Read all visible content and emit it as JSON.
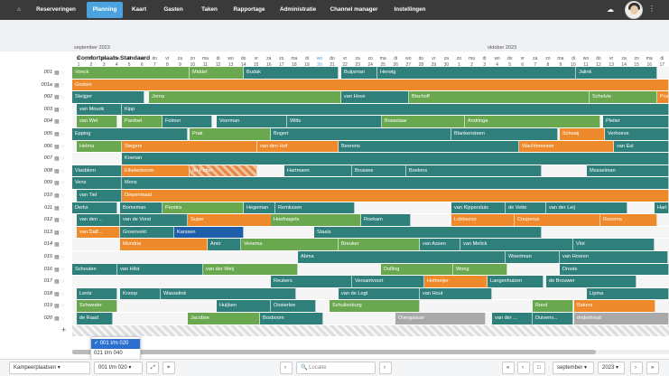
{
  "nav": {
    "home_icon": "home-icon",
    "items": [
      "Reserveringen",
      "Planning",
      "Kaart",
      "Gasten",
      "Taken",
      "Rapportage",
      "Administratie",
      "Channel manager",
      "Instellingen"
    ],
    "active": "Planning",
    "cloud_icon": "cloud-download-icon",
    "menu_icon": "kebab-menu-icon"
  },
  "months": {
    "m1": "september 2023",
    "m2": "oktober 2023"
  },
  "days": [
    [
      "vr",
      "1"
    ],
    [
      "za",
      "2"
    ],
    [
      "zo",
      "3"
    ],
    [
      "ma",
      "4"
    ],
    [
      "di",
      "5"
    ],
    [
      "wo",
      "6"
    ],
    [
      "do",
      "7"
    ],
    [
      "vr",
      "8"
    ],
    [
      "za",
      "9"
    ],
    [
      "zo",
      "10"
    ],
    [
      "ma",
      "11"
    ],
    [
      "di",
      "12"
    ],
    [
      "wo",
      "13"
    ],
    [
      "do",
      "14"
    ],
    [
      "vr",
      "15"
    ],
    [
      "za",
      "16"
    ],
    [
      "zo",
      "17"
    ],
    [
      "ma",
      "18"
    ],
    [
      "di",
      "19"
    ],
    [
      "wo",
      "20"
    ],
    [
      "do",
      "21"
    ],
    [
      "vr",
      "22"
    ],
    [
      "za",
      "23"
    ],
    [
      "zo",
      "24"
    ],
    [
      "ma",
      "25"
    ],
    [
      "di",
      "26"
    ],
    [
      "wo",
      "27"
    ],
    [
      "do",
      "28"
    ],
    [
      "vr",
      "29"
    ],
    [
      "za",
      "30"
    ],
    [
      "zo",
      "1"
    ],
    [
      "ma",
      "2"
    ],
    [
      "di",
      "3"
    ],
    [
      "wo",
      "4"
    ],
    [
      "do",
      "5"
    ],
    [
      "vr",
      "6"
    ],
    [
      "za",
      "7"
    ],
    [
      "zo",
      "8"
    ],
    [
      "ma",
      "9"
    ],
    [
      "di",
      "10"
    ],
    [
      "wo",
      "11"
    ],
    [
      "do",
      "12"
    ],
    [
      "vr",
      "13"
    ],
    [
      "za",
      "14"
    ],
    [
      "zo",
      "15"
    ],
    [
      "ma",
      "16"
    ],
    [
      "di",
      "17"
    ]
  ],
  "today_index": 19,
  "section_title": "Comfortplaats Standaard",
  "rows": [
    "001",
    "001a",
    "002",
    "003",
    "004",
    "005",
    "006",
    "007",
    "008",
    "009",
    "010",
    "011",
    "012",
    "013",
    "014",
    "015",
    "016",
    "017",
    "018",
    "019",
    "020"
  ],
  "bars": [
    [
      [
        "Vonck",
        "green",
        80,
        130
      ],
      [
        "Middel",
        "green",
        210,
        60
      ],
      [
        "Budak",
        "teal",
        270,
        105
      ],
      [
        "Buijsman",
        "teal",
        378,
        40
      ],
      [
        "Herwig",
        "teal",
        418,
        220
      ],
      [
        "Jalink",
        "teal",
        638,
        90
      ]
    ],
    [
      [
        "Gruben",
        "orange",
        80,
        661
      ]
    ],
    [
      [
        "Steijger",
        "teal",
        80,
        80
      ],
      [
        "Jorna",
        "green",
        165,
        213
      ],
      [
        "van Hove",
        "teal",
        378,
        75
      ],
      [
        "Bischoff",
        "green",
        453,
        200
      ],
      [
        "Schelvis",
        "green",
        653,
        75
      ],
      [
        "Pozz",
        "orange",
        728,
        13
      ]
    ],
    [
      [
        "van Mourik",
        "teal",
        85,
        50
      ],
      [
        "Kipp",
        "teal",
        135,
        606
      ]
    ],
    [
      [
        "van Wel",
        "green",
        85,
        45
      ],
      [
        "Pardoel",
        "green",
        135,
        45
      ],
      [
        "Folmer",
        "teal",
        180,
        55
      ],
      [
        "Voerman",
        "teal",
        240,
        78
      ],
      [
        "Wilts",
        "teal",
        318,
        105
      ],
      [
        "Bosselaar",
        "green",
        423,
        92
      ],
      [
        "Andringa",
        "green",
        515,
        150
      ],
      [
        "Pleiter",
        "teal",
        668,
        73
      ]
    ],
    [
      [
        "Epping",
        "teal",
        80,
        128
      ],
      [
        "Prak",
        "green",
        210,
        90
      ],
      [
        "Bogert",
        "teal",
        300,
        200
      ],
      [
        "Blankensteen",
        "teal",
        500,
        118
      ],
      [
        "Schaaij",
        "orange",
        620,
        50
      ],
      [
        "Verhoeve",
        "teal",
        670,
        71
      ]
    ],
    [
      [
        "Helma",
        "green",
        85,
        50
      ],
      [
        "Stegers",
        "orange",
        135,
        150
      ],
      [
        "van den Hof",
        "orange",
        285,
        90
      ],
      [
        "Beerens",
        "teal",
        375,
        200
      ],
      [
        "Wachtmeester",
        "orange",
        575,
        105
      ],
      [
        "van Est",
        "teal",
        680,
        61
      ]
    ],
    [
      [
        "Koenan",
        "teal",
        135,
        606
      ]
    ],
    [
      [
        "Viasblom",
        "teal",
        80,
        55
      ],
      [
        "Eikelenboom",
        "orange",
        135,
        75
      ],
      [
        "de Putter",
        "hatch",
        210,
        75
      ],
      [
        "Hartmann",
        "teal",
        315,
        75
      ],
      [
        "Brussee",
        "teal",
        390,
        60
      ],
      [
        "Boelens",
        "teal",
        450,
        150
      ],
      [
        "Mosselman",
        "teal",
        650,
        91
      ]
    ],
    [
      [
        "Vens",
        "teal",
        80,
        55
      ],
      [
        "Mons",
        "teal",
        135,
        606
      ]
    ],
    [
      [
        "van Tiel",
        "teal",
        85,
        50
      ],
      [
        "Diepenmaat",
        "orange",
        135,
        606
      ]
    ],
    [
      [
        "Derks",
        "teal",
        80,
        50
      ],
      [
        "Bomeman",
        "teal",
        133,
        47
      ],
      [
        "Pereira",
        "green",
        180,
        90
      ],
      [
        "Hegeman",
        "teal",
        270,
        35
      ],
      [
        "Remkssen",
        "teal",
        305,
        88
      ],
      [
        "van Kippersluis",
        "teal",
        500,
        60
      ],
      [
        "de Vette",
        "teal",
        560,
        45
      ],
      [
        "van der Leij",
        "teal",
        605,
        90
      ],
      [
        "Hart",
        "teal",
        725,
        16
      ]
    ],
    [
      [
        "van den ...",
        "teal",
        85,
        48
      ],
      [
        "van de Vorst",
        "teal",
        133,
        75
      ],
      [
        "Super",
        "orange",
        208,
        95
      ],
      [
        "Hoefnagels",
        "green",
        300,
        100
      ],
      [
        "Roekam",
        "teal",
        400,
        55
      ],
      [
        "Lobbezoo",
        "orange",
        500,
        70
      ],
      [
        "Couperus",
        "orange",
        570,
        95
      ],
      [
        "Rosema",
        "orange",
        665,
        63
      ]
    ],
    [
      [
        "van Daff...",
        "orange",
        85,
        48
      ],
      [
        "Groenveld",
        "teal",
        133,
        60
      ],
      [
        "Karssen",
        "blue",
        193,
        77
      ],
      [
        "Staals",
        "teal",
        348,
        252
      ]
    ],
    [
      [
        "Mondria",
        "orange",
        133,
        97
      ],
      [
        "Amir",
        "teal",
        230,
        37
      ],
      [
        "Venema",
        "green",
        267,
        108
      ],
      [
        "Breuker",
        "green",
        375,
        90
      ],
      [
        "van Assen",
        "teal",
        465,
        45
      ],
      [
        "van Melick",
        "teal",
        510,
        125
      ],
      [
        "Vlot",
        "teal",
        635,
        90
      ]
    ],
    [
      [
        "Abma",
        "teal",
        330,
        230
      ],
      [
        "Woertman",
        "teal",
        560,
        60
      ],
      [
        "van Hooren",
        "teal",
        620,
        120
      ]
    ],
    [
      [
        "Schouten",
        "teal",
        80,
        50
      ],
      [
        "van Hilst",
        "teal",
        130,
        95
      ],
      [
        "van der Weij",
        "green",
        225,
        105
      ],
      [
        "Dolfing",
        "green",
        422,
        80
      ],
      [
        "Wong",
        "green",
        502,
        60
      ],
      [
        "Droste",
        "teal",
        620,
        121
      ]
    ],
    [
      [
        "Reukers",
        "teal",
        300,
        90
      ],
      [
        "Versantvoort",
        "teal",
        390,
        80
      ],
      [
        "Hofmeijer",
        "orange",
        470,
        70
      ],
      [
        "Langenhuizen",
        "teal",
        540,
        62
      ],
      [
        "de Brouwer",
        "teal",
        605,
        100
      ]
    ],
    [
      [
        "Lentz",
        "teal",
        85,
        45
      ],
      [
        "Knoop",
        "teal",
        133,
        45
      ],
      [
        "Wasselink",
        "teal",
        178,
        150
      ],
      [
        "van de Logt",
        "teal",
        375,
        90
      ],
      [
        "van Hout",
        "teal",
        465,
        80
      ],
      [
        "Lipma",
        "teal",
        650,
        91
      ]
    ],
    [
      [
        "Schweder",
        "green",
        85,
        45
      ],
      [
        "Huijben",
        "teal",
        240,
        60
      ],
      [
        "Oosterlee",
        "teal",
        300,
        50
      ],
      [
        "Schuilenburg",
        "green",
        365,
        100
      ],
      [
        "Rood",
        "green",
        590,
        45
      ],
      [
        "Bakers",
        "orange",
        636,
        90
      ]
    ],
    [
      [
        "de Raad",
        "teal",
        85,
        40
      ],
      [
        "Jacobse",
        "green",
        208,
        80
      ],
      [
        "Bosboom",
        "teal",
        288,
        70
      ],
      [
        "Overgaauw",
        "gray",
        438,
        100
      ],
      [
        "van der ...",
        "teal",
        545,
        45
      ],
      [
        "Duivenv...",
        "teal",
        590,
        45
      ],
      [
        "onderhoud",
        "gray",
        636,
        105
      ]
    ]
  ],
  "dropdown": {
    "options": [
      "001 t/m 020",
      "021 t/m 040"
    ],
    "selected": "001 t/m 020"
  },
  "footer": {
    "category": "Kampeerplaatsen",
    "range": "001 t/m 020",
    "location_placeholder": "Locatie",
    "month": "september",
    "year": "2023"
  }
}
